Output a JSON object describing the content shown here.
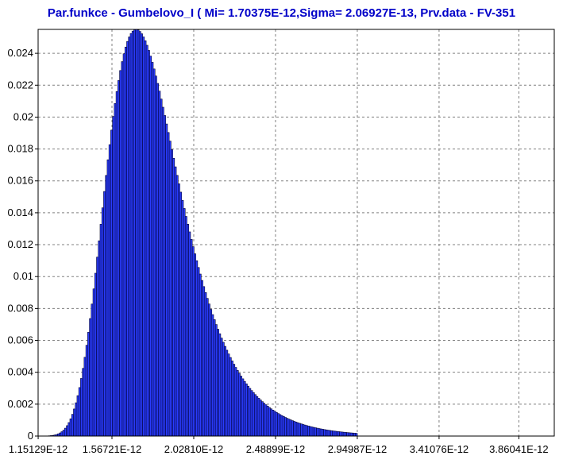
{
  "colors": {
    "title": "#0000c8",
    "bar_fill": "#2a3cff",
    "bar_stroke": "#000033",
    "grid": "#808080",
    "axis": "#000000",
    "background": "#ffffff"
  },
  "chart_data": {
    "type": "bar",
    "title": "Par.funkce - Gumbelovo_I ( Mi= 1.70375E-12,Sigma= 2.06927E-13, Prv.data - FV-351",
    "xlabel": "",
    "ylabel": "",
    "grid": true,
    "legend": "none",
    "distribution": {
      "family": "Gumbel",
      "mu": 1.70375e-12,
      "sigma": 2.06927e-13
    },
    "xlim": [
      1.151e-12,
      4.06e-12
    ],
    "ylim": [
      0,
      0.0255
    ],
    "bin_count": 180,
    "x_ticks": [
      1.15129e-12,
      1.56721e-12,
      2.0281e-12,
      2.48899e-12,
      2.94987e-12,
      3.41076e-12,
      3.86041e-12
    ],
    "x_tick_labels": [
      "1.15129E-12",
      "1.56721E-12",
      "2.02810E-12",
      "2.48899E-12",
      "2.94987E-12",
      "3.41076E-12",
      "3.86041E-12"
    ],
    "y_ticks": [
      0,
      0.002,
      0.004,
      0.006,
      0.008,
      0.01,
      0.012,
      0.014,
      0.016,
      0.018,
      0.02,
      0.022,
      0.024
    ],
    "y_tick_labels": [
      "0",
      "0.002",
      "0.004",
      "0.006",
      "0.008",
      "0.01",
      "0.012",
      "0.014",
      "0.016",
      "0.018",
      "0.02",
      "0.022",
      "0.024"
    ]
  }
}
